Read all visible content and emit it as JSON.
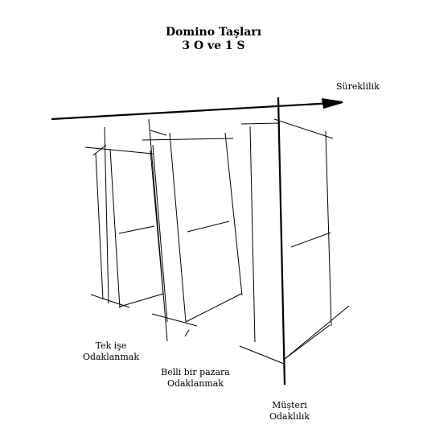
{
  "diagram": {
    "title": "Domino Taşları",
    "subtitle": "3 O ve 1 S",
    "axis_label": "Süreklilik",
    "dominoes": [
      {
        "line1": "Tek işe",
        "line2": "Odaklanmak"
      },
      {
        "line1": "Belli bir pazara",
        "line2": "Odaklanmak"
      },
      {
        "line1": "Müşteri",
        "line2": "Odaklılık"
      }
    ]
  }
}
